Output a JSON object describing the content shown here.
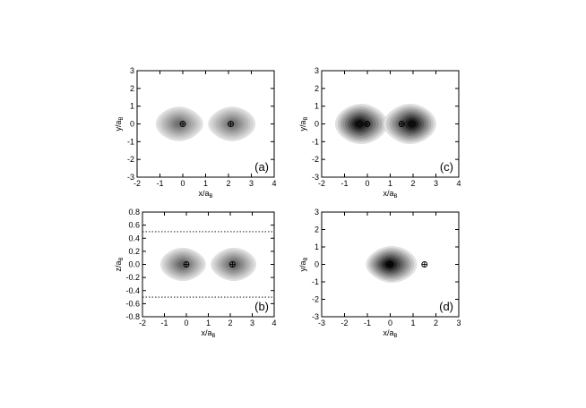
{
  "chart_data": [
    {
      "id": "a",
      "type": "contour",
      "panel_label": "(a)",
      "xlabel": "x/a",
      "xlabel_sub": "B",
      "ylabel": "y/a",
      "ylabel_sub": "B",
      "xlim": [
        -2,
        4
      ],
      "ylim": [
        -3,
        3
      ],
      "xticks": [
        -2,
        -1,
        0,
        1,
        2,
        3,
        4
      ],
      "yticks": [
        -3,
        -2,
        -1,
        0,
        1,
        2,
        3
      ],
      "tick_labels_x": [
        "-2",
        "-1",
        "0",
        "1",
        "2",
        "3",
        "4"
      ],
      "tick_labels_y": [
        "-3",
        "-2",
        "-1",
        "0",
        "1",
        "2",
        "3"
      ],
      "blobs": [
        {
          "cx": -0.05,
          "cy": 0,
          "rx": 0.55,
          "ry": 0.42,
          "peak_gray": 0.45,
          "inner_offset": -0.05
        },
        {
          "cx": 2.05,
          "cy": 0,
          "rx": 0.55,
          "ry": 0.42,
          "peak_gray": 0.45,
          "inner_offset": 0.05
        }
      ],
      "nuclei": [
        {
          "x": 0,
          "y": 0
        },
        {
          "x": 2.1,
          "y": 0
        }
      ],
      "hlines": []
    },
    {
      "id": "c",
      "type": "contour",
      "panel_label": "(c)",
      "xlabel": "x/a",
      "xlabel_sub": "B",
      "ylabel": "y/a",
      "ylabel_sub": "B",
      "xlim": [
        -2,
        4
      ],
      "ylim": [
        -3,
        3
      ],
      "xticks": [
        -2,
        -1,
        0,
        1,
        2,
        3,
        4
      ],
      "yticks": [
        -3,
        -2,
        -1,
        0,
        1,
        2,
        3
      ],
      "tick_labels_x": [
        "-2",
        "-1",
        "0",
        "1",
        "2",
        "3",
        "4"
      ],
      "tick_labels_y": [
        "-3",
        "-2",
        "-1",
        "0",
        "1",
        "2",
        "3"
      ],
      "blobs": [
        {
          "cx": -0.15,
          "cy": 0,
          "rx": 0.62,
          "ry": 0.5,
          "peak_gray": 0.05,
          "inner_offset": -0.1
        },
        {
          "cx": 1.75,
          "cy": 0,
          "rx": 0.62,
          "ry": 0.5,
          "peak_gray": 0.05,
          "inner_offset": 0.1
        }
      ],
      "nuclei": [
        {
          "x": 0,
          "y": 0
        },
        {
          "x": 1.5,
          "y": 0
        }
      ],
      "hlines": []
    },
    {
      "id": "b",
      "type": "contour",
      "panel_label": "(b)",
      "xlabel": "x/a",
      "xlabel_sub": "B",
      "ylabel": "z/a",
      "ylabel_sub": "B",
      "xlim": [
        -2,
        4
      ],
      "ylim": [
        -0.8,
        0.8
      ],
      "xticks": [
        -2,
        -1,
        0,
        1,
        2,
        3,
        4
      ],
      "yticks": [
        -0.8,
        -0.6,
        -0.4,
        -0.2,
        0,
        0.2,
        0.4,
        0.6,
        0.8
      ],
      "tick_labels_x": [
        "-2",
        "-1",
        "0",
        "1",
        "2",
        "3",
        "4"
      ],
      "tick_labels_y": [
        "-0.8",
        "-0.6",
        "-0.4",
        "-0.2",
        "0.0",
        "0.2",
        "0.4",
        "0.6",
        "0.8"
      ],
      "blobs": [
        {
          "cx": -0.05,
          "cy": 0,
          "rx": 0.55,
          "ry": 0.42,
          "peak_gray": 0.4,
          "inner_offset": -0.05
        },
        {
          "cx": 2.05,
          "cy": 0,
          "rx": 0.55,
          "ry": 0.42,
          "peak_gray": 0.4,
          "inner_offset": 0.05
        }
      ],
      "nuclei": [
        {
          "x": 0,
          "y": 0
        },
        {
          "x": 2.1,
          "y": 0
        }
      ],
      "hlines": [
        0.5,
        -0.5
      ]
    },
    {
      "id": "d",
      "type": "contour",
      "panel_label": "(d)",
      "xlabel": "x/a",
      "xlabel_sub": "B",
      "ylabel": "y/a",
      "ylabel_sub": "B",
      "xlim": [
        -3,
        3
      ],
      "ylim": [
        -3,
        3
      ],
      "xticks": [
        -3,
        -2,
        -1,
        0,
        1,
        2,
        3
      ],
      "yticks": [
        -3,
        -2,
        -1,
        0,
        1,
        2,
        3
      ],
      "tick_labels_x": [
        "-3",
        "-2",
        "-1",
        "0",
        "1",
        "2",
        "3"
      ],
      "tick_labels_y": [
        "-3",
        "-2",
        "-1",
        "0",
        "1",
        "2",
        "3"
      ],
      "blobs": [
        {
          "cx": -0.05,
          "cy": 0,
          "rx": 0.6,
          "ry": 0.45,
          "peak_gray": 0.05,
          "inner_offset": 0
        }
      ],
      "nuclei": [
        {
          "x": 0,
          "y": 0
        },
        {
          "x": 1.5,
          "y": 0
        }
      ],
      "hlines": []
    }
  ]
}
